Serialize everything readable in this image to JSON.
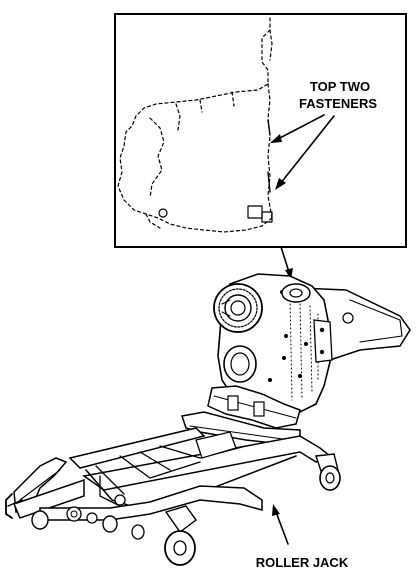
{
  "figure": {
    "labels": {
      "top_fasteners_line1": "TOP TWO",
      "top_fasteners_line2": "FASTENERS",
      "roller_jack": "ROLLER JACK"
    }
  }
}
